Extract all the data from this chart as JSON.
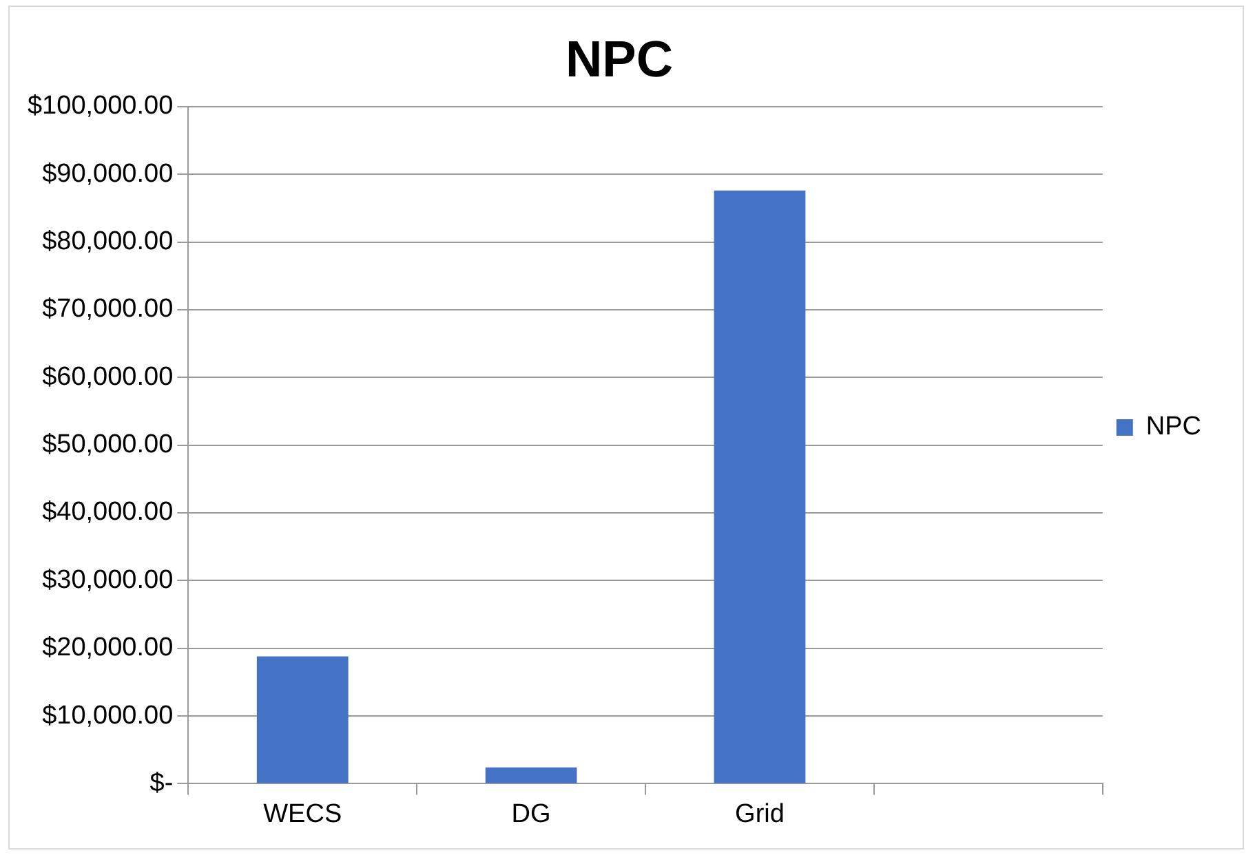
{
  "chart_data": {
    "type": "bar",
    "title": "NPC",
    "categories": [
      "WECS",
      "DG",
      "Grid",
      null
    ],
    "series": [
      {
        "name": "NPC",
        "color": "#4472c4",
        "values": [
          18800,
          2400,
          87600,
          null
        ]
      }
    ],
    "ylim": [
      0,
      100000
    ],
    "yticks": [
      {
        "value": 0,
        "label": "$-"
      },
      {
        "value": 10000,
        "label": "$10,000.00"
      },
      {
        "value": 20000,
        "label": "$20,000.00"
      },
      {
        "value": 30000,
        "label": "$30,000.00"
      },
      {
        "value": 40000,
        "label": "$40,000.00"
      },
      {
        "value": 50000,
        "label": "$50,000.00"
      },
      {
        "value": 60000,
        "label": "$60,000.00"
      },
      {
        "value": 70000,
        "label": "$70,000.00"
      },
      {
        "value": 80000,
        "label": "$80,000.00"
      },
      {
        "value": 90000,
        "label": "$90,000.00"
      },
      {
        "value": 100000,
        "label": "$100,000.00"
      }
    ],
    "grid": "y",
    "legend": "right"
  }
}
